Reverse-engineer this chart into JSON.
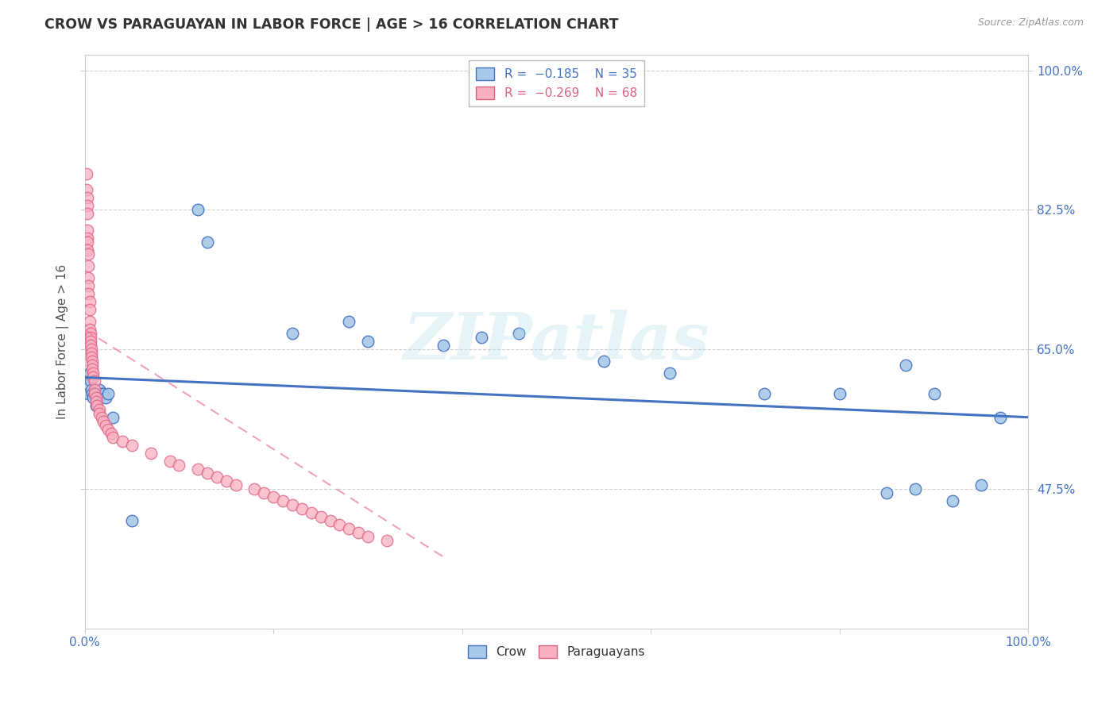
{
  "title": "CROW VS PARAGUAYAN IN LABOR FORCE | AGE > 16 CORRELATION CHART",
  "source": "Source: ZipAtlas.com",
  "ylabel": "In Labor Force | Age > 16",
  "xlim": [
    0.0,
    1.0
  ],
  "ylim": [
    0.3,
    1.02
  ],
  "watermark": "ZIPatlas",
  "crow_color": "#a8c8e8",
  "crow_edge_color": "#4472c4",
  "paraguayan_color": "#f8b0c0",
  "paraguayan_edge_color": "#e06080",
  "crow_line_color": "#4472c4",
  "paraguayan_line_color": "#e87090",
  "grid_color": "#cccccc",
  "background_color": "#ffffff",
  "ytick_vals": [
    0.475,
    0.65,
    0.825,
    1.0
  ],
  "ytick_labels": [
    "47.5%",
    "65.0%",
    "82.5%",
    "100.0%"
  ],
  "xtick_vals": [
    0.0,
    0.2,
    0.4,
    0.6,
    0.8,
    1.0
  ],
  "xtick_labels": [
    "0.0%",
    "",
    "",
    "",
    "",
    "100.0%"
  ],
  "crow_x": [
    0.003,
    0.004,
    0.005,
    0.006,
    0.007,
    0.008,
    0.009,
    0.01,
    0.012,
    0.015,
    0.018,
    0.02,
    0.022,
    0.025,
    0.03,
    0.05,
    0.12,
    0.13,
    0.22,
    0.28,
    0.3,
    0.38,
    0.42,
    0.46,
    0.55,
    0.62,
    0.72,
    0.8,
    0.85,
    0.87,
    0.88,
    0.9,
    0.92,
    0.95,
    0.97
  ],
  "crow_y": [
    0.615,
    0.595,
    0.62,
    0.61,
    0.6,
    0.595,
    0.59,
    0.595,
    0.58,
    0.6,
    0.595,
    0.595,
    0.59,
    0.595,
    0.565,
    0.435,
    0.825,
    0.785,
    0.67,
    0.685,
    0.66,
    0.655,
    0.665,
    0.67,
    0.635,
    0.62,
    0.595,
    0.595,
    0.47,
    0.63,
    0.475,
    0.595,
    0.46,
    0.48,
    0.565
  ],
  "paraguayan_x": [
    0.002,
    0.002,
    0.003,
    0.003,
    0.003,
    0.003,
    0.003,
    0.003,
    0.003,
    0.004,
    0.004,
    0.004,
    0.004,
    0.004,
    0.005,
    0.005,
    0.005,
    0.005,
    0.006,
    0.006,
    0.006,
    0.006,
    0.007,
    0.007,
    0.007,
    0.008,
    0.008,
    0.008,
    0.009,
    0.009,
    0.01,
    0.01,
    0.01,
    0.012,
    0.012,
    0.013,
    0.015,
    0.015,
    0.018,
    0.02,
    0.022,
    0.025,
    0.028,
    0.03,
    0.04,
    0.05,
    0.07,
    0.09,
    0.1,
    0.12,
    0.13,
    0.14,
    0.15,
    0.16,
    0.18,
    0.19,
    0.2,
    0.21,
    0.22,
    0.23,
    0.24,
    0.25,
    0.26,
    0.27,
    0.28,
    0.29,
    0.3,
    0.32
  ],
  "paraguayan_y": [
    0.87,
    0.85,
    0.84,
    0.83,
    0.82,
    0.8,
    0.79,
    0.785,
    0.775,
    0.77,
    0.755,
    0.74,
    0.73,
    0.72,
    0.71,
    0.7,
    0.685,
    0.675,
    0.67,
    0.665,
    0.66,
    0.655,
    0.65,
    0.645,
    0.64,
    0.635,
    0.63,
    0.625,
    0.62,
    0.615,
    0.61,
    0.6,
    0.595,
    0.59,
    0.585,
    0.58,
    0.575,
    0.57,
    0.565,
    0.56,
    0.555,
    0.55,
    0.545,
    0.54,
    0.535,
    0.53,
    0.52,
    0.51,
    0.505,
    0.5,
    0.495,
    0.49,
    0.485,
    0.48,
    0.475,
    0.47,
    0.465,
    0.46,
    0.455,
    0.45,
    0.445,
    0.44,
    0.435,
    0.43,
    0.425,
    0.42,
    0.415,
    0.41
  ],
  "crow_trend_x": [
    0.0,
    1.0
  ],
  "crow_trend_y": [
    0.615,
    0.565
  ],
  "paraguayan_trend_x": [
    0.0,
    0.38
  ],
  "paraguayan_trend_y": [
    0.675,
    0.39
  ],
  "dpi": 100
}
